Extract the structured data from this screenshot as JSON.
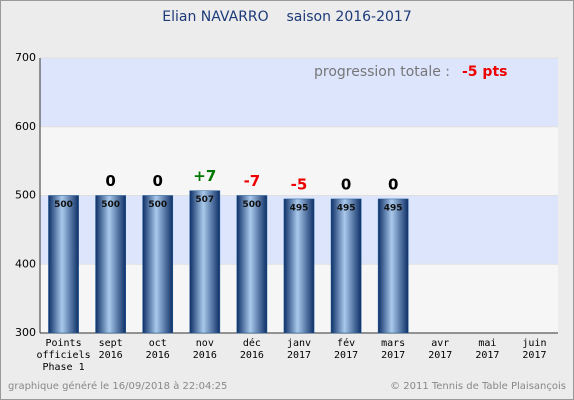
{
  "chart_data": {
    "type": "bar",
    "title": "Elian NAVARRO    saison 2016-2017",
    "categories": [
      "Points\nofficiels\nPhase 1",
      "sept\n2016",
      "oct\n2016",
      "nov\n2016",
      "déc\n2016",
      "janv\n2017",
      "fév\n2017",
      "mars\n2017",
      "avr\n2017",
      "mai\n2017",
      "juin\n2017"
    ],
    "values": [
      500,
      500,
      500,
      507,
      500,
      495,
      495,
      495,
      null,
      null,
      null
    ],
    "changes": [
      null,
      0,
      0,
      7,
      -7,
      -5,
      0,
      0,
      null,
      null,
      null
    ],
    "change_labels": [
      null,
      "0",
      "0",
      "+7",
      "-7",
      "-5",
      "0",
      "0",
      null,
      null,
      null
    ],
    "positive_color": "#007700",
    "negative_color": "#ee0000",
    "zero_color": "#000000",
    "color": "#1f5a96",
    "ylim": [
      300,
      700
    ],
    "yticks": [
      300,
      400,
      500,
      600,
      700
    ],
    "annotation": "progression totale :",
    "annotation_value": "-5 pts",
    "footer_left": "graphique généré le 16/09/2018 à 22:04:25",
    "footer_right": "© 2011 Tennis de Table Plaisançois"
  }
}
